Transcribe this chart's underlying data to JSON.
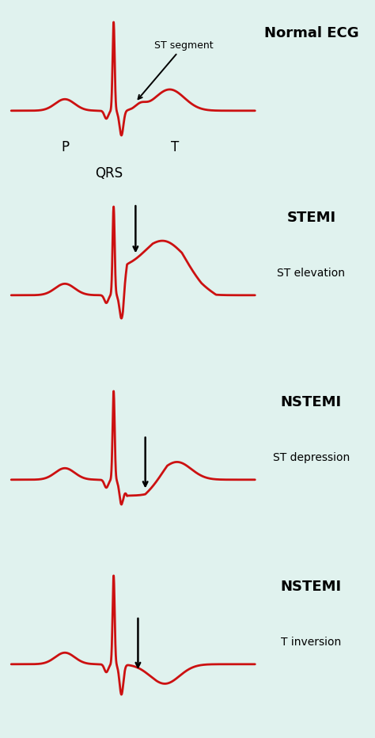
{
  "bg": "#e0f2ee",
  "ecg_color": "#cc1111",
  "lw": 2.0,
  "figsize": [
    4.74,
    9.32
  ],
  "dpi": 100,
  "panels": [
    {
      "type": "normal",
      "title": "Normal ECG",
      "subtitle": null,
      "label_p": "P",
      "label_qrs": "QRS",
      "label_t": "T",
      "st_annotation": "ST segment"
    },
    {
      "type": "stemi",
      "title": "STEMI",
      "subtitle": "ST elevation"
    },
    {
      "type": "nstemi_d",
      "title": "NSTEMI",
      "subtitle": "ST depression"
    },
    {
      "type": "nstemi_t",
      "title": "NSTEMI",
      "subtitle": "T inversion"
    }
  ]
}
